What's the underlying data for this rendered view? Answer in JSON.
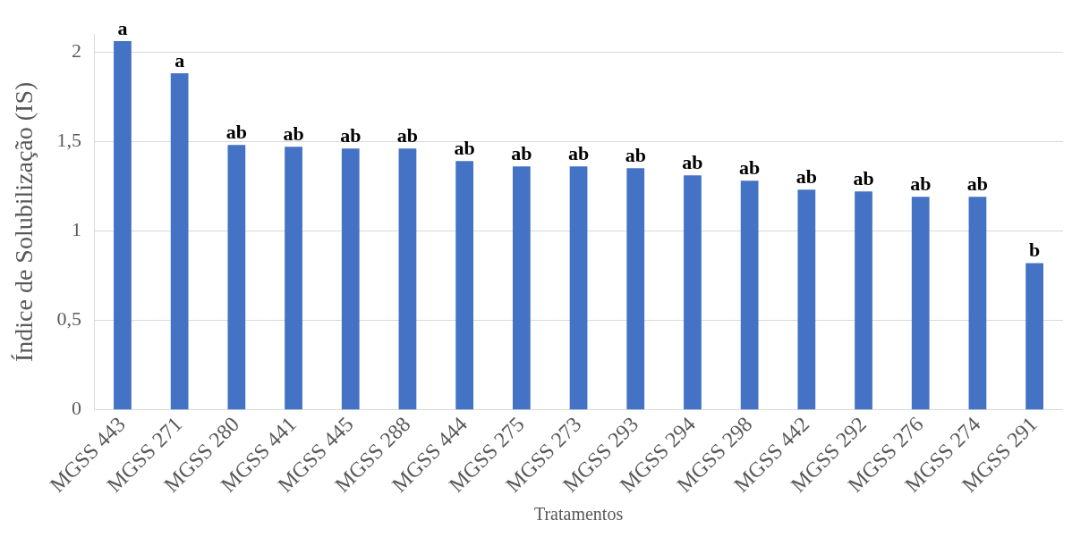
{
  "chart_data": {
    "type": "bar",
    "xlabel": "Tratamentos",
    "ylabel": "Índice de Solubilização (IS)",
    "categories": [
      "MGSS 443",
      "MGSS 271",
      "MGSS 280",
      "MGSS 441",
      "MGSS 445",
      "MGSS 288",
      "MGSS 444",
      "MGSS 275",
      "MGSS 273",
      "MGSS 293",
      "MGSS 294",
      "MGSS 298",
      "MGSS 442",
      "MGSS 292",
      "MGSS 276",
      "MGSS 274",
      "MGSS 291"
    ],
    "values": [
      2.06,
      1.88,
      1.48,
      1.47,
      1.46,
      1.46,
      1.39,
      1.36,
      1.36,
      1.35,
      1.31,
      1.28,
      1.23,
      1.22,
      1.19,
      1.19,
      0.82
    ],
    "color": "#4472c4",
    "ylim": [
      0,
      2.1
    ],
    "yticks": [
      0,
      {
        "value": 0.5,
        "label": "0,5"
      },
      1,
      {
        "value": 1.5,
        "label": "1,5"
      },
      2
    ],
    "grid": "y",
    "legend": false,
    "annotations": [
      {
        "text": "a",
        "x": "MGSS 443",
        "y": 2.06
      },
      {
        "text": "a",
        "x": "MGSS 271",
        "y": 1.88
      },
      {
        "text": "ab",
        "x": "MGSS 280",
        "y": 1.48
      },
      {
        "text": "ab",
        "x": "MGSS 441",
        "y": 1.47
      },
      {
        "text": "ab",
        "x": "MGSS 445",
        "y": 1.46
      },
      {
        "text": "ab",
        "x": "MGSS 288",
        "y": 1.46
      },
      {
        "text": "ab",
        "x": "MGSS 444",
        "y": 1.39
      },
      {
        "text": "ab",
        "x": "MGSS 275",
        "y": 1.36
      },
      {
        "text": "ab",
        "x": "MGSS 273",
        "y": 1.36
      },
      {
        "text": "ab",
        "x": "MGSS 293",
        "y": 1.35
      },
      {
        "text": "ab",
        "x": "MGSS 294",
        "y": 1.31
      },
      {
        "text": "ab",
        "x": "MGSS 298",
        "y": 1.28
      },
      {
        "text": "ab",
        "x": "MGSS 442",
        "y": 1.23
      },
      {
        "text": "ab",
        "x": "MGSS 292",
        "y": 1.22
      },
      {
        "text": "ab",
        "x": "MGSS 276",
        "y": 1.19
      },
      {
        "text": "ab",
        "x": "MGSS 274",
        "y": 1.19
      },
      {
        "text": "b",
        "x": "MGSS 291",
        "y": 0.82
      }
    ]
  }
}
